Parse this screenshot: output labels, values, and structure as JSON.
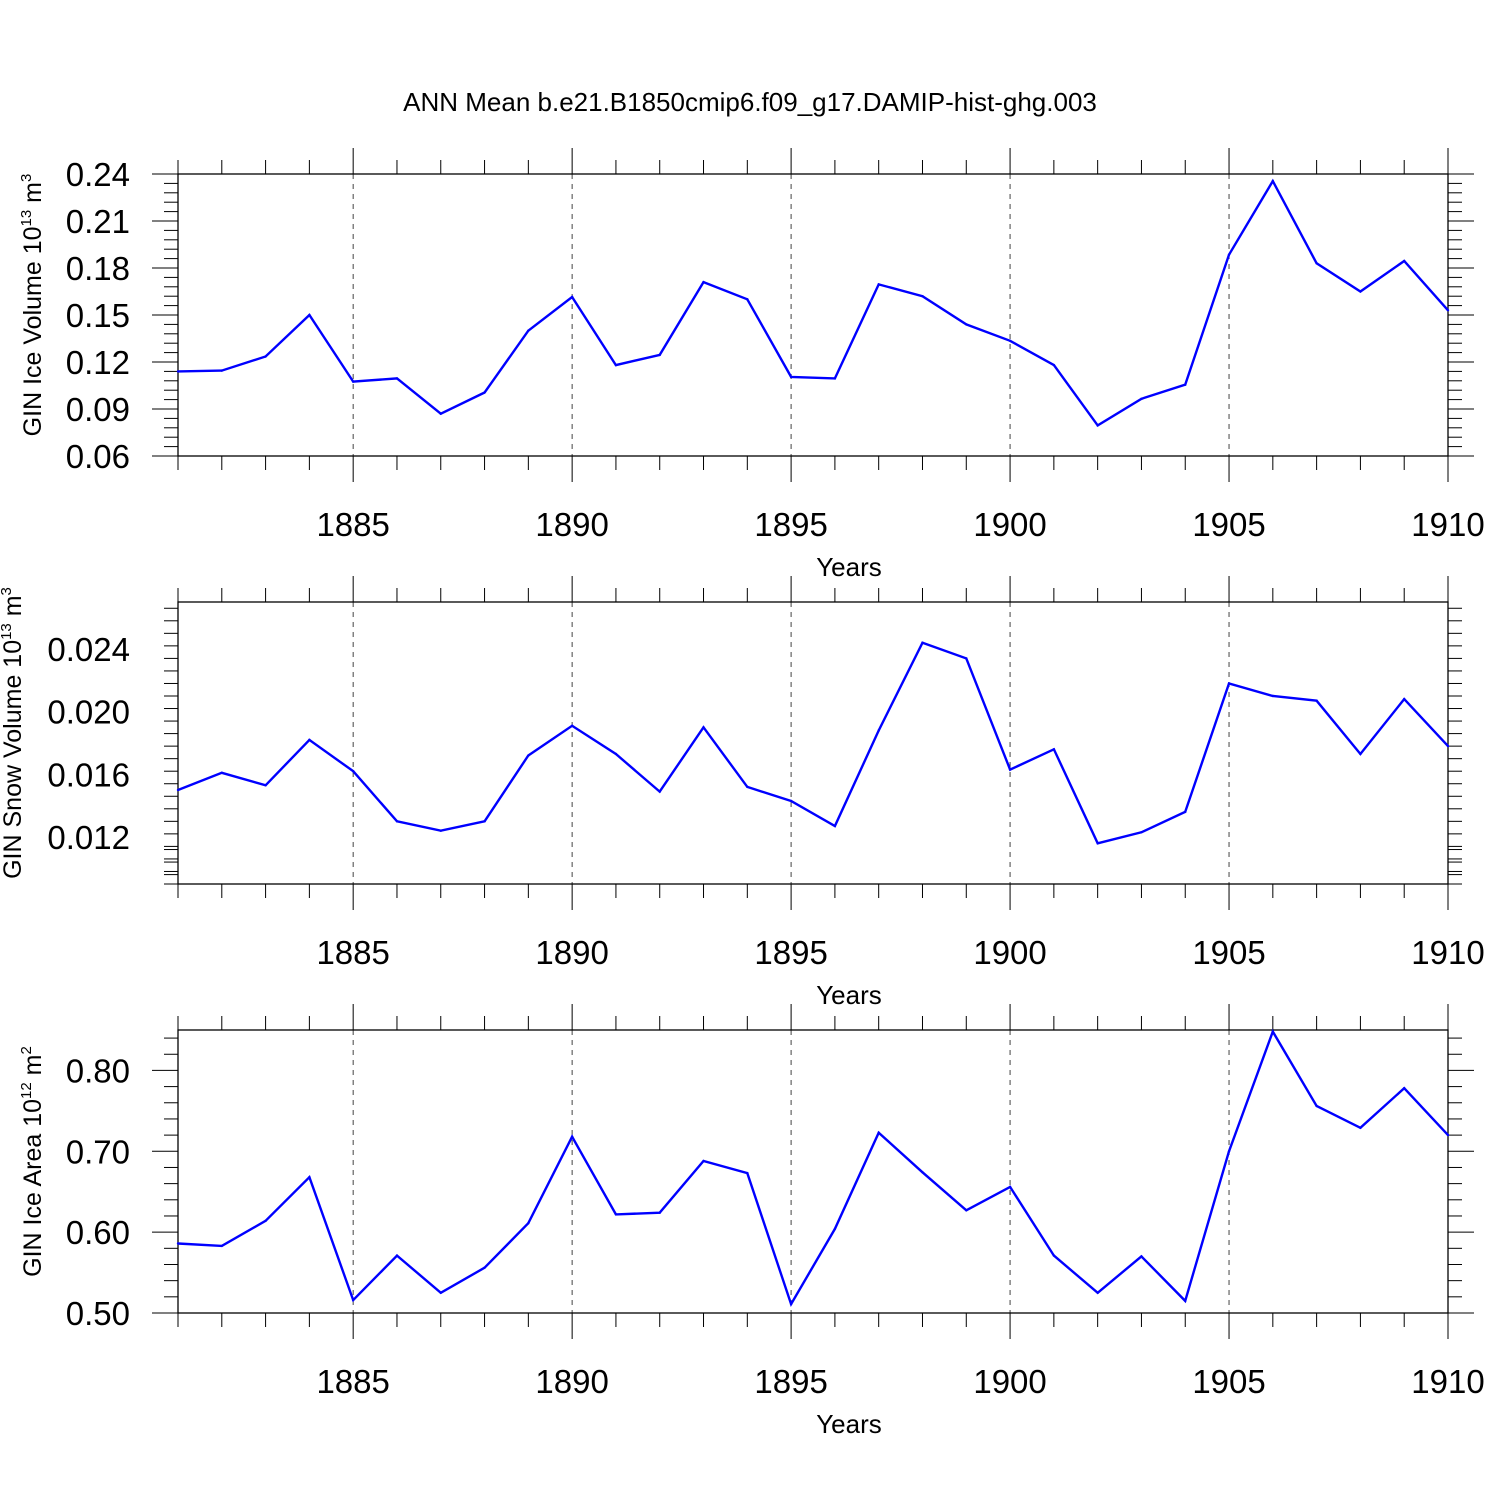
{
  "title": "ANN Mean b.e21.B1850cmip6.f09_g17.DAMIP-hist-ghg.003",
  "chart_data": [
    {
      "type": "line",
      "ylabel": {
        "main": "GIN Ice Volume 10",
        "exp": "13",
        "unit": " m",
        "unit_exp": "3"
      },
      "xlabel": "Years",
      "xlim": [
        1881,
        1910
      ],
      "ylim": [
        0.06,
        0.24
      ],
      "xticks": [
        1885,
        1890,
        1895,
        1900,
        1905,
        1910
      ],
      "xtick_labels": [
        "1885",
        "1890",
        "1895",
        "1900",
        "1905",
        "1910"
      ],
      "yticks": [
        0.06,
        0.09,
        0.12,
        0.15,
        0.18,
        0.21,
        0.24
      ],
      "ytick_labels": [
        "0.06",
        "0.09",
        "0.12",
        "0.15",
        "0.18",
        "0.21",
        "0.24"
      ],
      "grid": "dashed vertical at major x ticks",
      "series": [
        {
          "name": "GIN Ice Volume",
          "color": "#0000ff",
          "x": [
            1881,
            1882,
            1883,
            1884,
            1885,
            1886,
            1887,
            1888,
            1889,
            1890,
            1891,
            1892,
            1893,
            1894,
            1895,
            1896,
            1897,
            1898,
            1899,
            1900,
            1901,
            1902,
            1903,
            1904,
            1905,
            1906,
            1907,
            1908,
            1909,
            1910
          ],
          "y": [
            0.114,
            0.1145,
            0.1235,
            0.15,
            0.1075,
            0.1095,
            0.087,
            0.1005,
            0.14,
            0.1615,
            0.118,
            0.1245,
            0.171,
            0.16,
            0.1105,
            0.1095,
            0.1695,
            0.162,
            0.144,
            0.1335,
            0.118,
            0.0795,
            0.0965,
            0.1055,
            0.1885,
            0.2355,
            0.183,
            0.165,
            0.1845,
            0.153
          ]
        }
      ]
    },
    {
      "type": "line",
      "ylabel": {
        "main": "GIN Snow Volume 10",
        "exp": "13",
        "unit": " m",
        "unit_exp": "3"
      },
      "xlabel": "Years",
      "xlim": [
        1881,
        1910
      ],
      "ylim": [
        0.009,
        0.027
      ],
      "xticks": [
        1885,
        1890,
        1895,
        1900,
        1905,
        1910
      ],
      "xtick_labels": [
        "1885",
        "1890",
        "1895",
        "1900",
        "1905",
        "1910"
      ],
      "yticks": [
        0.012,
        0.016,
        0.02,
        0.024
      ],
      "ytick_labels": [
        "0.012",
        "0.016",
        "0.020",
        "0.024"
      ],
      "grid": "dashed vertical at major x ticks",
      "series": [
        {
          "name": "GIN Snow Volume",
          "color": "#0000ff",
          "x": [
            1881,
            1882,
            1883,
            1884,
            1885,
            1886,
            1887,
            1888,
            1889,
            1890,
            1891,
            1892,
            1893,
            1894,
            1895,
            1896,
            1897,
            1898,
            1899,
            1900,
            1901,
            1902,
            1903,
            1904,
            1905,
            1906,
            1907,
            1908,
            1909,
            1910
          ],
          "y": [
            0.015,
            0.0161,
            0.0153,
            0.0182,
            0.0162,
            0.013,
            0.0124,
            0.013,
            0.0172,
            0.0191,
            0.0173,
            0.0149,
            0.019,
            0.0152,
            0.0143,
            0.0127,
            0.0188,
            0.0244,
            0.0234,
            0.0163,
            0.0176,
            0.0116,
            0.0123,
            0.0136,
            0.0218,
            0.021,
            0.0207,
            0.0173,
            0.0208,
            0.0178
          ]
        }
      ]
    },
    {
      "type": "line",
      "ylabel": {
        "main": "GIN Ice Area 10",
        "exp": "12",
        "unit": " m",
        "unit_exp": "2"
      },
      "xlabel": "Years",
      "xlim": [
        1881,
        1910
      ],
      "ylim": [
        0.5,
        0.85
      ],
      "xticks": [
        1885,
        1890,
        1895,
        1900,
        1905,
        1910
      ],
      "xtick_labels": [
        "1885",
        "1890",
        "1895",
        "1900",
        "1905",
        "1910"
      ],
      "yticks": [
        0.5,
        0.6,
        0.7,
        0.8
      ],
      "ytick_labels": [
        "0.50",
        "0.60",
        "0.70",
        "0.80"
      ],
      "grid": "dashed vertical at major x ticks",
      "series": [
        {
          "name": "GIN Ice Area",
          "color": "#0000ff",
          "x": [
            1881,
            1882,
            1883,
            1884,
            1885,
            1886,
            1887,
            1888,
            1889,
            1890,
            1891,
            1892,
            1893,
            1894,
            1895,
            1896,
            1897,
            1898,
            1899,
            1900,
            1901,
            1902,
            1903,
            1904,
            1905,
            1906,
            1907,
            1908,
            1909,
            1910
          ],
          "y": [
            0.586,
            0.583,
            0.614,
            0.668,
            0.516,
            0.571,
            0.525,
            0.556,
            0.611,
            0.718,
            0.622,
            0.624,
            0.688,
            0.673,
            0.511,
            0.604,
            0.723,
            0.674,
            0.627,
            0.656,
            0.571,
            0.525,
            0.57,
            0.515,
            0.7,
            0.848,
            0.756,
            0.729,
            0.778,
            0.72
          ]
        }
      ]
    }
  ]
}
